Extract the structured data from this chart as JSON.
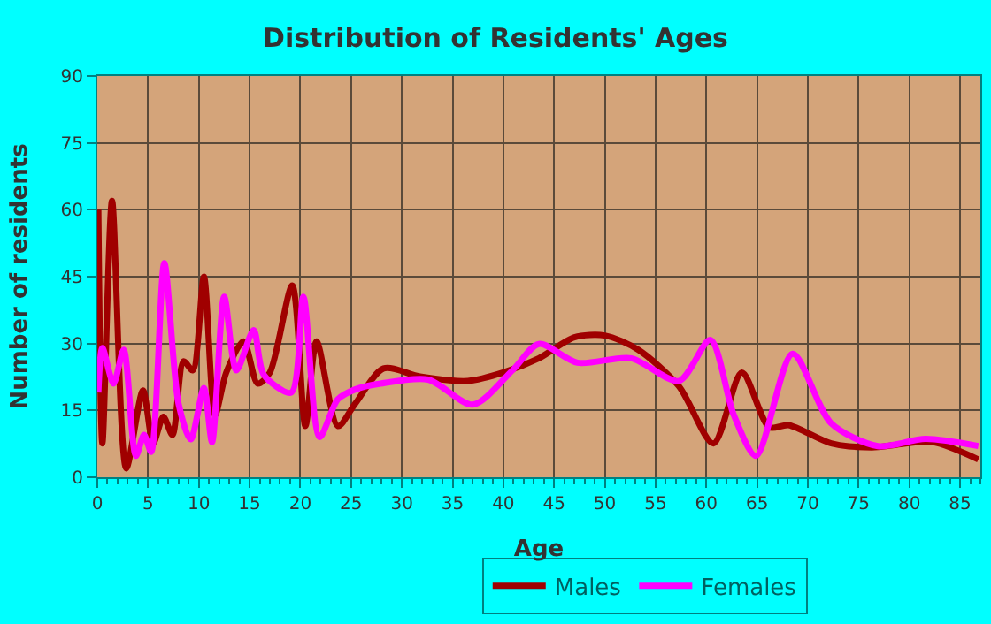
{
  "chart_data": {
    "type": "line",
    "title": "Distribution of Residents' Ages",
    "xlabel": "Age",
    "ylabel": "Number of residents",
    "xlim": [
      0,
      87
    ],
    "xticks": [
      0,
      5,
      10,
      15,
      20,
      25,
      30,
      35,
      40,
      45,
      50,
      55,
      60,
      65,
      70,
      75,
      80,
      85
    ],
    "ylim": [
      0,
      90
    ],
    "yticks": [
      0,
      15,
      30,
      45,
      60,
      75,
      90
    ],
    "grid": true,
    "legend": "bottom",
    "marker": "none",
    "line_style": "solid",
    "series": [
      {
        "name": "Males",
        "color": "#a00000",
        "x": [
          0.1,
          0.5,
          1.45,
          2.85,
          4.5,
          5.5,
          6.5,
          7.4,
          8.5,
          9.4,
          10.5,
          11.6,
          12.7,
          14.4,
          15.8,
          17,
          19.2,
          20.5,
          21.6,
          23.7,
          25.4,
          28.2,
          31.8,
          36.5,
          40,
          43.5,
          47,
          50,
          53.3,
          57.3,
          60.7,
          63.5,
          66.2,
          68.1,
          72.3,
          76.3,
          82.2,
          86.8
        ],
        "values": [
          60,
          7.6,
          62,
          2,
          19.5,
          7.6,
          13.6,
          9.5,
          26,
          24,
          45,
          14,
          23.5,
          30.5,
          21,
          23.5,
          43,
          11.5,
          30.5,
          11.5,
          16.5,
          24.4,
          22.6,
          21.6,
          23.5,
          26.7,
          31.4,
          31.8,
          28.6,
          20.4,
          7.6,
          23.5,
          11.2,
          11.7,
          7.6,
          6.7,
          7.9,
          4
        ]
      },
      {
        "name": "Females",
        "color": "#ff00ff",
        "x": [
          0.1,
          0.5,
          1.6,
          2.6,
          3.8,
          4.6,
          5.3,
          6.6,
          8,
          9.2,
          10.5,
          11.3,
          12.5,
          13.7,
          15.4,
          16.4,
          19.1,
          20.3,
          21.9,
          23.7,
          25.4,
          27.9,
          32.6,
          37,
          40.9,
          43.5,
          47.3,
          52.6,
          57.3,
          60.4,
          62.7,
          64.9,
          68.5,
          72.3,
          76.9,
          81.6,
          86.8
        ],
        "values": [
          19,
          29,
          21,
          28.6,
          4.8,
          9.5,
          5.7,
          48,
          16.5,
          8.5,
          20,
          7.9,
          40.5,
          24,
          33,
          23,
          19,
          40.5,
          9,
          17.5,
          19.7,
          21,
          21.9,
          16.3,
          24,
          29.9,
          25.7,
          26.7,
          21.6,
          30.8,
          14,
          4.8,
          27.7,
          12.1,
          7,
          8.6,
          7
        ]
      }
    ]
  }
}
